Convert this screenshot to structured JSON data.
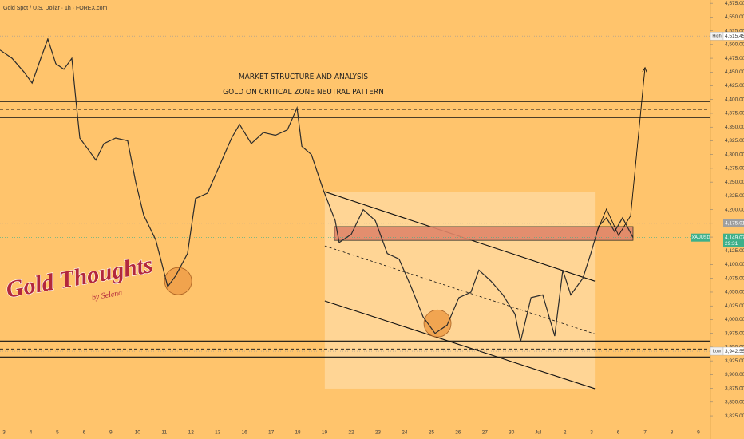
{
  "chart_data": {
    "type": "line",
    "title": "Gold Spot / U.S. Dollar · 1h · FOREX.com",
    "annotations": [
      "MARKET STRUCTURE AND ANALYSIS",
      "GOLD ON CRITICAL ZONE NEUTRAL PATTERN"
    ],
    "logo": {
      "title": "Gold Thoughts",
      "byline": "by Selena"
    },
    "categories": [
      "3",
      "4",
      "5",
      "6",
      "9",
      "10",
      "11",
      "12",
      "13",
      "16",
      "17",
      "18",
      "19",
      "22",
      "23",
      "24",
      "25",
      "26",
      "27",
      "30",
      "Jul",
      "2",
      "3",
      "6",
      "7",
      "8",
      "9"
    ],
    "xlim": [
      -0.15,
      26.45
    ],
    "ylim": [
      3783,
      4581
    ],
    "yticks": [
      {
        "value": 3825,
        "label": "3,825.00"
      },
      {
        "value": 3850,
        "label": "3,850.00"
      },
      {
        "value": 3875,
        "label": "3,875.00"
      },
      {
        "value": 3900,
        "label": "3,900.00"
      },
      {
        "value": 3925,
        "label": "3,925.00"
      },
      {
        "value": 3950,
        "label": "3,950.00"
      },
      {
        "value": 3975,
        "label": "3,975.00"
      },
      {
        "value": 4000,
        "label": "4,000.00"
      },
      {
        "value": 4025,
        "label": "4,025.00"
      },
      {
        "value": 4050,
        "label": "4,050.00"
      },
      {
        "value": 4075,
        "label": "4,075.00"
      },
      {
        "value": 4100,
        "label": "4,100.00"
      },
      {
        "value": 4125,
        "label": "4,125.00"
      },
      {
        "value": 4150,
        "label": "4,150.00"
      },
      {
        "value": 4175,
        "label": "4,175.00"
      },
      {
        "value": 4200,
        "label": "4,200.00"
      },
      {
        "value": 4225,
        "label": "4,225.00"
      },
      {
        "value": 4250,
        "label": "4,250.00"
      },
      {
        "value": 4275,
        "label": "4,275.00"
      },
      {
        "value": 4300,
        "label": "4,300.00"
      },
      {
        "value": 4325,
        "label": "4,325.00"
      },
      {
        "value": 4350,
        "label": "4,350.00"
      },
      {
        "value": 4375,
        "label": "4,375.00"
      },
      {
        "value": 4400,
        "label": "4,400.00"
      },
      {
        "value": 4425,
        "label": "4,425.00"
      },
      {
        "value": 4450,
        "label": "4,450.00"
      },
      {
        "value": 4475,
        "label": "4,475.00"
      },
      {
        "value": 4500,
        "label": "4,500.00"
      },
      {
        "value": 4525,
        "label": "4,525.00"
      },
      {
        "value": 4550,
        "label": "4,550.00"
      },
      {
        "value": 4575,
        "label": "4,575.00"
      }
    ],
    "series": [
      {
        "name": "XAUUSD",
        "color": "#2b2b2b",
        "x": [
          -0.15,
          0.3,
          0.75,
          1.05,
          1.34,
          1.64,
          1.94,
          2.24,
          2.54,
          2.69,
          2.84,
          3.14,
          3.44,
          3.74,
          4.18,
          4.63,
          4.93,
          5.23,
          5.68,
          6.13,
          6.43,
          6.87,
          7.17,
          7.62,
          8.07,
          8.52,
          8.82,
          9.26,
          9.71,
          10.16,
          10.61,
          10.97,
          11.15,
          11.51,
          11.96,
          12.4,
          12.55,
          13.0,
          13.45,
          13.9,
          14.35,
          14.79,
          15.24,
          15.69,
          16.14,
          16.59,
          17.03,
          17.48,
          17.78,
          18.23,
          18.68,
          19.13,
          19.34,
          19.73,
          20.17,
          20.62,
          20.92,
          21.22,
          21.67,
          21.97,
          22.27,
          22.56,
          22.86,
          23.16,
          23.55
        ],
        "values": [
          4490,
          4475,
          4450,
          4430,
          4470,
          4510,
          4465,
          4455,
          4475,
          4400,
          4330,
          4310,
          4290,
          4320,
          4330,
          4325,
          4250,
          4190,
          4145,
          4060,
          4080,
          4120,
          4220,
          4230,
          4280,
          4330,
          4355,
          4320,
          4340,
          4335,
          4345,
          4385,
          4315,
          4300,
          4235,
          4180,
          4140,
          4155,
          4200,
          4180,
          4120,
          4110,
          4060,
          4005,
          3975,
          3990,
          4040,
          4050,
          4090,
          4070,
          4045,
          4010,
          3960,
          4040,
          4045,
          3970,
          4090,
          4045,
          4075,
          4120,
          4170,
          4185,
          4160,
          4185,
          4149.07
        ]
      }
    ],
    "horizontal_lines": [
      {
        "value": 4396.5,
        "style": "solid"
      },
      {
        "value": 4382,
        "style": "dashed"
      },
      {
        "value": 4367.5,
        "style": "solid"
      },
      {
        "value": 3961,
        "style": "solid"
      },
      {
        "value": 3946.5,
        "style": "dashed"
      },
      {
        "value": 3932,
        "style": "solid"
      }
    ],
    "zone": {
      "x": [
        12.37,
        23.55
      ],
      "y": [
        4144,
        4169
      ],
      "color": "#e0876a"
    },
    "channel": {
      "x": [
        12.01,
        22.12
      ],
      "top": [
        4232.5,
        4070
      ],
      "mid": [
        4134,
        3974
      ],
      "bottom": [
        4034,
        3874.5
      ],
      "color": "#ffd9a0"
    },
    "projection": {
      "x": [
        22.2,
        22.56,
        23.01,
        23.46,
        24.0
      ],
      "y": [
        4160,
        4201,
        4153,
        4189,
        4458
      ]
    },
    "circles": {
      "x": [
        6.52,
        16.23
      ],
      "y": [
        4070,
        3993
      ],
      "color": "#f0a04a"
    },
    "price_tags": [
      {
        "text": "High",
        "value": 4515.45,
        "value_label": "4,515.45",
        "color": "#ffffff"
      },
      {
        "value": 4175.01,
        "value_label": "4,175.01",
        "color": "#9e9e9e"
      },
      {
        "value": 4149.07,
        "value_label": "4,149.07",
        "countdown": "29:31",
        "color": "#3db08a"
      },
      {
        "text": "Low",
        "value": 3942.55,
        "value_label": "3,942.55",
        "color": "#ffffff"
      }
    ]
  }
}
